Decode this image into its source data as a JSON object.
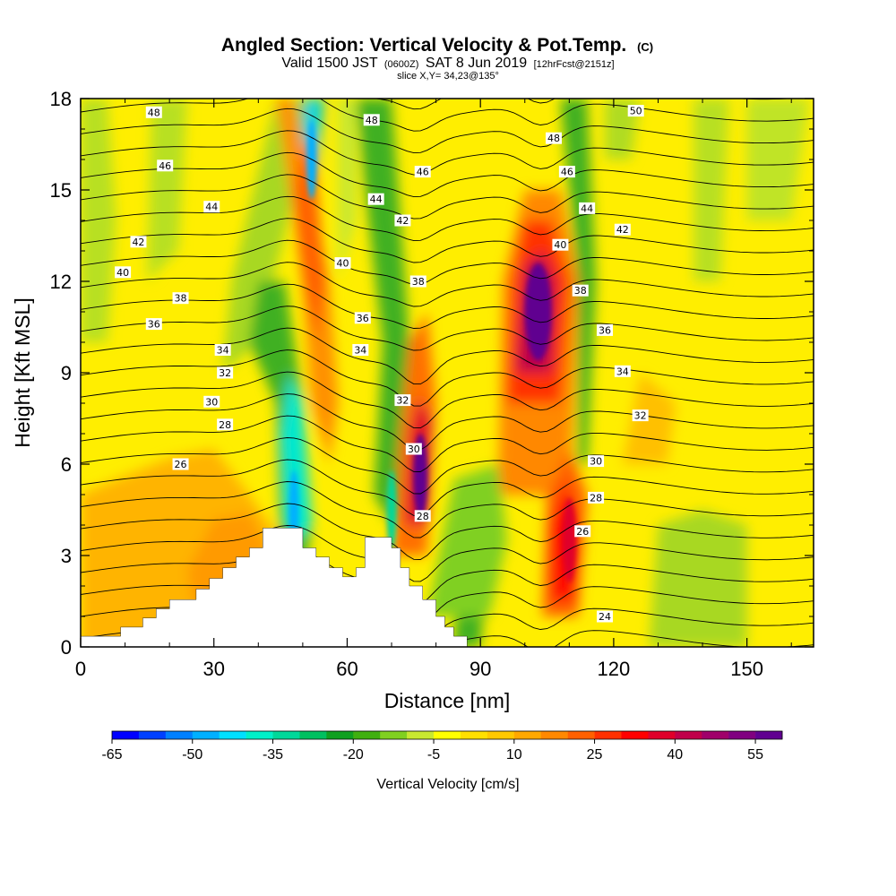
{
  "header": {
    "title": "Angled Section: Vertical Velocity & Pot.Temp.",
    "title_suffix": "(C)",
    "subtitle_a": "Valid 1500 JST",
    "subtitle_b": "(0600Z)",
    "subtitle_c": "SAT 8 Jun 2019",
    "subtitle_d": "[12hrFcst@2151z]",
    "slice": "slice X,Y= 34,23@135°"
  },
  "colorbar": {
    "label": "Vertical Velocity [cm/s]",
    "tick_labels": [
      "-65",
      "-50",
      "-35",
      "-20",
      "-5",
      "10",
      "25",
      "40",
      "55"
    ],
    "colors": [
      "#0000ff",
      "#0040ff",
      "#0080ff",
      "#00b0ff",
      "#00e0ff",
      "#00f0c8",
      "#00d89a",
      "#00c060",
      "#10a020",
      "#40b010",
      "#80d020",
      "#c8e830",
      "#ffff00",
      "#ffe000",
      "#ffc800",
      "#ffa800",
      "#ff8800",
      "#ff6000",
      "#ff3000",
      "#ff0000",
      "#e0002a",
      "#c0004a",
      "#a0006a",
      "#800080",
      "#600090"
    ]
  },
  "chart_data": {
    "type": "heatmap",
    "title": "Angled Section: Vertical Velocity & Pot.Temp. (C)",
    "xlabel": "Distance [nm]",
    "ylabel": "Height [Kft MSL]",
    "xlim": [
      0,
      165
    ],
    "ylim": [
      0,
      18
    ],
    "xticks": [
      0,
      30,
      60,
      90,
      120,
      150
    ],
    "yticks": [
      0,
      3,
      6,
      9,
      12,
      15,
      18
    ],
    "colorbar_range": [
      -65,
      60
    ],
    "grid": false,
    "fill_field": "Vertical Velocity [cm/s]",
    "contour_field": "Pot.Temp. (C)",
    "theta_levels": [
      24,
      26,
      28,
      30,
      32,
      34,
      36,
      38,
      40,
      42,
      44,
      46,
      48,
      50
    ],
    "contour_labels": [
      {
        "text": "48",
        "x": 16.5,
        "y": 17.55
      },
      {
        "text": "46",
        "x": 19,
        "y": 15.8
      },
      {
        "text": "44",
        "x": 29.5,
        "y": 14.45
      },
      {
        "text": "42",
        "x": 13,
        "y": 13.3
      },
      {
        "text": "40",
        "x": 9.5,
        "y": 12.3
      },
      {
        "text": "38",
        "x": 22.5,
        "y": 11.45
      },
      {
        "text": "36",
        "x": 16.5,
        "y": 10.6
      },
      {
        "text": "34",
        "x": 32,
        "y": 9.75
      },
      {
        "text": "32",
        "x": 32.5,
        "y": 9.0
      },
      {
        "text": "30",
        "x": 29.5,
        "y": 8.05
      },
      {
        "text": "28",
        "x": 32.5,
        "y": 7.3
      },
      {
        "text": "26",
        "x": 22.5,
        "y": 6.0
      },
      {
        "text": "48",
        "x": 65.5,
        "y": 17.3
      },
      {
        "text": "46",
        "x": 77,
        "y": 15.6
      },
      {
        "text": "44",
        "x": 66.5,
        "y": 14.7
      },
      {
        "text": "42",
        "x": 72.5,
        "y": 14.0
      },
      {
        "text": "40",
        "x": 59,
        "y": 12.6
      },
      {
        "text": "38",
        "x": 76,
        "y": 12.0
      },
      {
        "text": "36",
        "x": 63.5,
        "y": 10.8
      },
      {
        "text": "34",
        "x": 63,
        "y": 9.75
      },
      {
        "text": "32",
        "x": 72.5,
        "y": 8.1
      },
      {
        "text": "30",
        "x": 75,
        "y": 6.5
      },
      {
        "text": "28",
        "x": 77,
        "y": 4.3
      },
      {
        "text": "50",
        "x": 125,
        "y": 17.6
      },
      {
        "text": "48",
        "x": 106.5,
        "y": 16.7
      },
      {
        "text": "46",
        "x": 109.5,
        "y": 15.6
      },
      {
        "text": "44",
        "x": 114,
        "y": 14.4
      },
      {
        "text": "42",
        "x": 122,
        "y": 13.7
      },
      {
        "text": "40",
        "x": 108,
        "y": 13.2
      },
      {
        "text": "38",
        "x": 112.5,
        "y": 11.7
      },
      {
        "text": "36",
        "x": 118,
        "y": 10.4
      },
      {
        "text": "34",
        "x": 122,
        "y": 9.05
      },
      {
        "text": "32",
        "x": 126,
        "y": 7.6
      },
      {
        "text": "30",
        "x": 116,
        "y": 6.1
      },
      {
        "text": "28",
        "x": 116,
        "y": 4.9
      },
      {
        "text": "26",
        "x": 113,
        "y": 3.8
      },
      {
        "text": "24",
        "x": 118,
        "y": 1.0
      }
    ],
    "updraft_cores": [
      {
        "x": 76.5,
        "y": 5.6,
        "max_cms": 60
      },
      {
        "x": 103,
        "y": 11,
        "max_cms": 60
      },
      {
        "x": 110,
        "y": 3.5,
        "max_cms": 40
      }
    ],
    "downdraft_cores": [
      {
        "x": 52,
        "y": 16,
        "min_cms": -45
      },
      {
        "x": 48,
        "y": 4.5,
        "min_cms": -40
      },
      {
        "x": 70,
        "y": 4.5,
        "min_cms": -25
      }
    ],
    "terrain_note": "white terrain mask, peaks ~3.9 kft near 45-50 nm and ~3.6 kft near 67-72 nm"
  }
}
